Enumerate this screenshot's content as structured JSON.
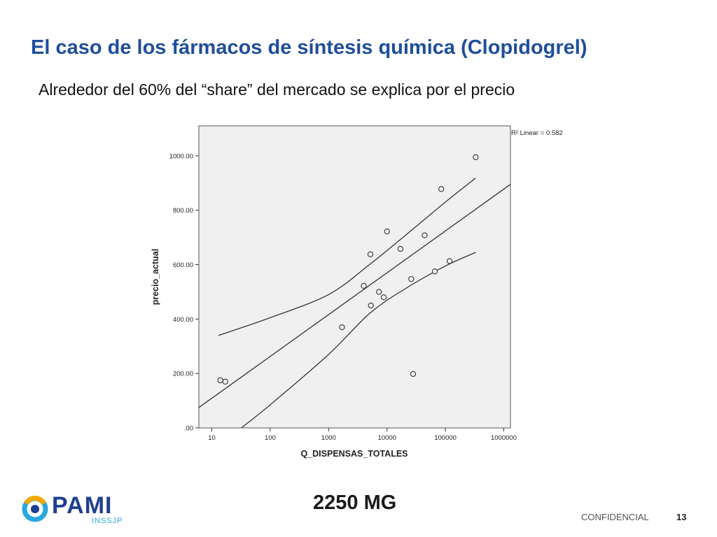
{
  "slide": {
    "title": "El caso de los fármacos de síntesis química (Clopidogrel)",
    "subtitle": "Alrededor del 60% del “share” del mercado se explica por el precio",
    "dose_label": "2250 MG",
    "footer_confidential": "CONFIDENCIAL",
    "page_number": "13"
  },
  "logo": {
    "text": "PAMI",
    "subtext": "INSSJP",
    "colors": {
      "primary": "#1f3f8f",
      "accent": "#29a8e0",
      "ring": "#f2a900"
    }
  },
  "colors": {
    "title": "#1f4e9a",
    "plot_bg": "#f0f0f0"
  },
  "chart_data": {
    "type": "scatter",
    "title": "",
    "xlabel": "Q_DISPENSAS_TOTALES",
    "ylabel": "precio_actual",
    "x_scale": "log",
    "xlim": [
      6,
      1300000
    ],
    "ylim": [
      0,
      1110
    ],
    "x_ticks": [
      10,
      100,
      1000,
      10000,
      100000,
      1000000
    ],
    "x_tick_labels": [
      "10",
      "100",
      "1000",
      "10000",
      "100000",
      "1000000"
    ],
    "y_ticks": [
      0,
      200,
      400,
      600,
      800,
      1000
    ],
    "y_tick_labels": [
      ".00",
      "200.00",
      "400.00",
      "600.00",
      "800.00",
      "1000.00"
    ],
    "grid": false,
    "annotation": "R² Linear = 0.582",
    "points": [
      {
        "x": 14,
        "y": 175
      },
      {
        "x": 17,
        "y": 170
      },
      {
        "x": 1700,
        "y": 370
      },
      {
        "x": 4000,
        "y": 522
      },
      {
        "x": 5200,
        "y": 638
      },
      {
        "x": 5300,
        "y": 450
      },
      {
        "x": 7300,
        "y": 500
      },
      {
        "x": 8800,
        "y": 480
      },
      {
        "x": 10000,
        "y": 722
      },
      {
        "x": 17000,
        "y": 658
      },
      {
        "x": 26000,
        "y": 547
      },
      {
        "x": 28000,
        "y": 198
      },
      {
        "x": 44000,
        "y": 708
      },
      {
        "x": 66000,
        "y": 575
      },
      {
        "x": 85000,
        "y": 878
      },
      {
        "x": 118000,
        "y": 613
      },
      {
        "x": 330000,
        "y": 995
      }
    ],
    "fit_line": [
      {
        "x": 6,
        "y": 75
      },
      {
        "x": 1300000,
        "y": 895
      }
    ],
    "ci_upper": [
      {
        "x": 13,
        "y": 340
      },
      {
        "x": 100,
        "y": 405
      },
      {
        "x": 1000,
        "y": 490
      },
      {
        "x": 5000,
        "y": 600
      },
      {
        "x": 20000,
        "y": 705
      },
      {
        "x": 100000,
        "y": 830
      },
      {
        "x": 330000,
        "y": 918
      }
    ],
    "ci_lower": [
      {
        "x": 32,
        "y": 0
      },
      {
        "x": 100,
        "y": 85
      },
      {
        "x": 1000,
        "y": 270
      },
      {
        "x": 5000,
        "y": 420
      },
      {
        "x": 20000,
        "y": 510
      },
      {
        "x": 100000,
        "y": 595
      },
      {
        "x": 330000,
        "y": 645
      }
    ]
  }
}
